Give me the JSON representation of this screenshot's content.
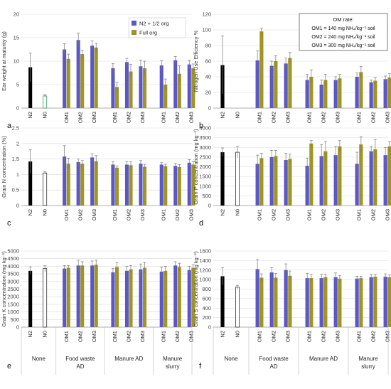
{
  "legend": {
    "series": [
      {
        "name": "N2 + 1/2 org",
        "color": "#5b57c4"
      },
      {
        "name": "Full org",
        "color": "#9f9424"
      }
    ]
  },
  "om_rate": {
    "title": "OM rate:",
    "lines": [
      "OM1 = 140 mg NH₄/kg⁻¹ soil",
      "OM2 = 240 mg NH₄/kg⁻¹ soil",
      "OM3 = 300 mg NH₄/kg⁻¹ soil"
    ]
  },
  "x_labels": [
    "N2",
    "N0",
    "OM1",
    "OM2",
    "OM3",
    "OM1",
    "OM2",
    "OM3",
    "OM1",
    "OM2",
    "OM3",
    "OM1",
    "OM2",
    "OM3"
  ],
  "group_labels": [
    {
      "lines": [
        "None"
      ]
    },
    {
      "lines": [
        "Food waste",
        "AD"
      ]
    },
    {
      "lines": [
        "Manure AD"
      ]
    },
    {
      "lines": [
        "Manure",
        "slurry"
      ]
    }
  ],
  "chart_data": [
    {
      "id": "a",
      "type": "bar",
      "panel_letter": "a",
      "ylabel": "Ear weight at maturity (g)",
      "ylim": [
        0,
        20
      ],
      "yticks": [
        0,
        5,
        10,
        15,
        20
      ],
      "controls": {
        "N2": 8.7,
        "N2_err": 3.0,
        "N0": 2.6,
        "N0_err": 0.3
      },
      "categories": [
        "OM1",
        "OM2",
        "OM3",
        "OM1",
        "OM2",
        "OM3",
        "OM1",
        "OM2",
        "OM3"
      ],
      "series": [
        {
          "name": "N2 + 1/2 org",
          "values": [
            12.5,
            14.5,
            13.3,
            8.5,
            9.8,
            8.9,
            9.1,
            10.2,
            9.3
          ],
          "errors": [
            1.2,
            1.5,
            1.0,
            1.0,
            0.8,
            1.3,
            1.0,
            0.8,
            0.9
          ]
        },
        {
          "name": "Full org",
          "values": [
            10.5,
            11.5,
            12.9,
            4.5,
            7.8,
            8.5,
            5.0,
            7.3,
            8.5
          ],
          "errors": [
            1.0,
            0.8,
            0.9,
            1.0,
            1.5,
            1.5,
            1.2,
            1.7,
            0.9
          ]
        }
      ]
    },
    {
      "id": "b",
      "type": "bar",
      "panel_letter": "b",
      "ylabel": "Nitrogen Use Efficiency %",
      "ylim": [
        0,
        120
      ],
      "yticks": [
        0,
        20,
        40,
        60,
        80,
        100,
        120
      ],
      "controls": {
        "N2": 55,
        "N2_err": 37,
        "N0": null,
        "N0_err": null
      },
      "categories": [
        "OM1",
        "OM2",
        "OM3",
        "OM1",
        "OM2",
        "OM3",
        "OM1",
        "OM2",
        "OM3"
      ],
      "series": [
        {
          "name": "N2 + 1/2 org",
          "values": [
            61,
            54,
            57,
            36,
            30,
            36,
            40,
            33,
            37
          ],
          "errors": [
            12,
            6,
            7,
            7,
            6,
            4,
            5,
            3,
            4
          ]
        },
        {
          "name": "Full org",
          "values": [
            98,
            60,
            64,
            40,
            36,
            38,
            46,
            35,
            39
          ],
          "errors": [
            4,
            7,
            7,
            9,
            7,
            5,
            7,
            4,
            5
          ]
        }
      ]
    },
    {
      "id": "c",
      "type": "bar",
      "panel_letter": "c",
      "ylabel": "Grain N concentration (%)",
      "ylim": [
        0,
        2.5
      ],
      "yticks": [
        0,
        0.5,
        1,
        1.5,
        2,
        2.5
      ],
      "controls": {
        "N2": 1.42,
        "N2_err": 0.38,
        "N0": 1.05,
        "N0_err": 0.04
      },
      "categories": [
        "OM1",
        "OM2",
        "OM3",
        "OM1",
        "OM2",
        "OM3",
        "OM1",
        "OM2",
        "OM3"
      ],
      "series": [
        {
          "name": "N2 + 1/2 org",
          "values": [
            1.58,
            1.4,
            1.55,
            1.32,
            1.32,
            1.35,
            1.32,
            1.28,
            1.38
          ],
          "errors": [
            0.35,
            0.1,
            0.12,
            0.1,
            0.1,
            0.1,
            0.06,
            0.08,
            0.1
          ]
        },
        {
          "name": "Full org",
          "values": [
            1.35,
            1.35,
            1.43,
            1.22,
            1.3,
            1.25,
            1.27,
            1.24,
            1.32
          ],
          "errors": [
            0.18,
            0.1,
            0.18,
            0.06,
            0.12,
            0.08,
            0.06,
            0.08,
            0.1
          ]
        }
      ]
    },
    {
      "id": "d",
      "type": "bar",
      "panel_letter": "d",
      "ylabel": "Grain P concentration (mg kg⁻¹)",
      "ylim": [
        0,
        4000
      ],
      "yticks": [
        0,
        500,
        1000,
        1500,
        2000,
        2500,
        3000,
        3500,
        4000
      ],
      "controls": {
        "N2": 2750,
        "N2_err": 220,
        "N0": 2750,
        "N0_err": 300
      },
      "categories": [
        "OM1",
        "OM2",
        "OM3",
        "OM1",
        "OM2",
        "OM3",
        "OM1",
        "OM2",
        "OM3"
      ],
      "series": [
        {
          "name": "N2 + 1/2 org",
          "values": [
            2150,
            2500,
            2350,
            2050,
            2550,
            2600,
            2150,
            2800,
            2600
          ],
          "errors": [
            450,
            350,
            350,
            400,
            600,
            450,
            600,
            250,
            400
          ]
        },
        {
          "name": "Full org",
          "values": [
            2450,
            2550,
            2400,
            3200,
            2800,
            3050,
            3150,
            2900,
            3050
          ],
          "errors": [
            250,
            300,
            250,
            150,
            500,
            300,
            400,
            500,
            250
          ]
        }
      ]
    },
    {
      "id": "e",
      "type": "bar",
      "panel_letter": "e",
      "ylabel": "Grain K concentration (mg kg⁻¹)",
      "ylim": [
        0,
        5000
      ],
      "yticks": [
        0,
        500,
        1000,
        1500,
        2000,
        2500,
        3000,
        3500,
        4000,
        4500,
        5000
      ],
      "controls": {
        "N2": 3700,
        "N2_err": 250,
        "N0": 3850,
        "N0_err": 200
      },
      "categories": [
        "OM1",
        "OM2",
        "OM3",
        "OM1",
        "OM2",
        "OM3",
        "OM1",
        "OM2",
        "OM3"
      ],
      "series": [
        {
          "name": "N2 + 1/2 org",
          "values": [
            3850,
            4050,
            4050,
            3600,
            3700,
            3800,
            3650,
            4050,
            3750
          ],
          "errors": [
            200,
            350,
            300,
            250,
            300,
            350,
            300,
            250,
            250
          ]
        },
        {
          "name": "Full org",
          "values": [
            3900,
            4050,
            4100,
            3950,
            3800,
            3900,
            3700,
            3950,
            3900
          ],
          "errors": [
            150,
            250,
            300,
            300,
            250,
            350,
            300,
            250,
            200
          ]
        }
      ]
    },
    {
      "id": "f",
      "type": "bar",
      "panel_letter": "f",
      "ylabel": "Grain S concentration (mg kg⁻¹)",
      "ylim": [
        0,
        1600
      ],
      "yticks": [
        0,
        200,
        400,
        600,
        800,
        1000,
        1200,
        1400,
        1600
      ],
      "controls": {
        "N2": 1070,
        "N2_err": 180,
        "N0": 840,
        "N0_err": 40
      },
      "categories": [
        "OM1",
        "OM2",
        "OM3",
        "OM1",
        "OM2",
        "OM3",
        "OM1",
        "OM2",
        "OM3"
      ],
      "series": [
        {
          "name": "N2 + 1/2 org",
          "values": [
            1220,
            1150,
            1200,
            1030,
            1030,
            1050,
            1020,
            1050,
            1060
          ],
          "errors": [
            200,
            100,
            130,
            100,
            80,
            90,
            50,
            60,
            60
          ]
        },
        {
          "name": "Full org",
          "values": [
            1040,
            1040,
            1080,
            1030,
            1050,
            1020,
            1030,
            1060,
            1050
          ],
          "errors": [
            80,
            90,
            100,
            80,
            60,
            70,
            40,
            50,
            50
          ]
        }
      ]
    }
  ]
}
